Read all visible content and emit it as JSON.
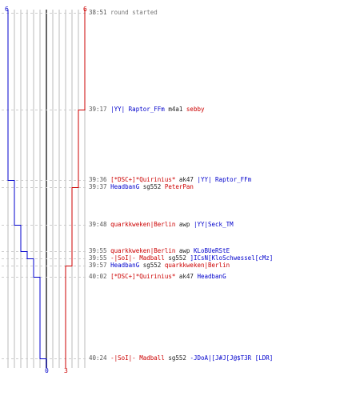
{
  "teams": {
    "blue": {
      "color": "#0000cc",
      "start": "6",
      "end": "0"
    },
    "red": {
      "color": "#cc0000",
      "start": "6",
      "end": "3"
    }
  },
  "events": [
    {
      "time": "38:51",
      "type": "info",
      "message": "round started"
    },
    {
      "time": "39:17",
      "type": "kill",
      "killer": "|YY| Raptor_FFm",
      "killer_team": "blue",
      "weapon": "m4a1",
      "victim": "sebby",
      "victim_team": "red"
    },
    {
      "time": "39:36",
      "type": "kill",
      "killer": "[*DSC+]*Quirinius*",
      "killer_team": "red",
      "weapon": "ak47",
      "victim": "|YY| Raptor_FFm",
      "victim_team": "blue"
    },
    {
      "time": "39:37",
      "type": "kill",
      "killer": "HeadbanG",
      "killer_team": "blue",
      "weapon": "sg552",
      "victim": "PeterPan",
      "victim_team": "red"
    },
    {
      "time": "39:48",
      "type": "kill",
      "killer": "quarkkweken|Berlin",
      "killer_team": "red",
      "weapon": "awp",
      "victim": "|YY|Seck_TM",
      "victim_team": "blue"
    },
    {
      "time": "39:55",
      "type": "kill",
      "killer": "quarkkweken|Berlin",
      "killer_team": "red",
      "weapon": "awp",
      "victim": "KLoBUeRStE",
      "victim_team": "blue"
    },
    {
      "time": "39:55",
      "type": "kill",
      "killer": "-|SoI|- Madball",
      "killer_team": "red",
      "weapon": "sg552",
      "victim": "]ICsN[KloSchwessel[cMz]",
      "victim_team": "blue"
    },
    {
      "time": "39:57",
      "type": "kill",
      "killer": "HeadbanG",
      "killer_team": "blue",
      "weapon": "sg552",
      "victim": "quarkkweken|Berlin",
      "victim_team": "red"
    },
    {
      "time": "40:02",
      "type": "kill",
      "killer": "[*DSC+]*Quirinius*",
      "killer_team": "red",
      "weapon": "ak47",
      "victim": "HeadbanG",
      "victim_team": "blue"
    },
    {
      "time": "40:24",
      "type": "kill",
      "killer": "-|SoI|- Madball",
      "killer_team": "red",
      "weapon": "sg552",
      "victim": "-JDoA|[J#J[J@$T3R [LDR]",
      "victim_team": "blue"
    }
  ],
  "colors": {
    "grid": "#bbbbbb",
    "center": "#666666",
    "dashed": "#cccccc",
    "time": "#555555"
  }
}
